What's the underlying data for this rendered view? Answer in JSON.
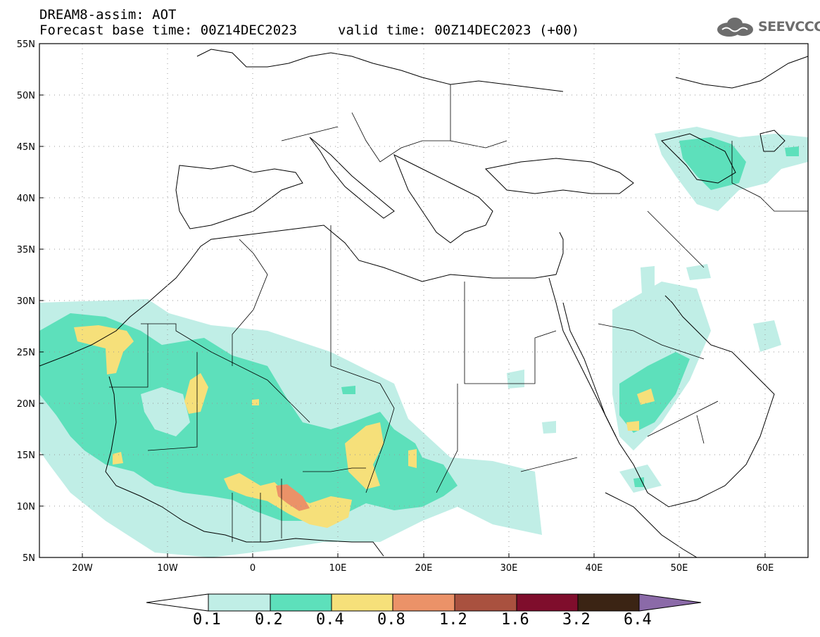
{
  "header": {
    "title": "DREAM8-assim: AOT",
    "base_time": "Forecast base time: 00Z14DEC2023",
    "valid_time": "valid time: 00Z14DEC2023 (+00)",
    "logo_text": "SEEVCCC"
  },
  "map": {
    "lon_range": [
      -25,
      65
    ],
    "lat_range": [
      5,
      55
    ],
    "lat_labels": [
      "55N",
      "50N",
      "45N",
      "40N",
      "35N",
      "30N",
      "25N",
      "20N",
      "15N",
      "10N",
      "5N"
    ],
    "lon_labels": [
      "20W",
      "10W",
      "0",
      "10E",
      "20E",
      "30E",
      "40E",
      "50E",
      "60E"
    ]
  },
  "colorbar": {
    "levels": [
      "0.1",
      "0.2",
      "0.4",
      "0.8",
      "1.2",
      "1.6",
      "3.2",
      "6.4"
    ],
    "colors": [
      "#ffffff",
      "#c0eee6",
      "#5de0bb",
      "#f6e07a",
      "#eb9268",
      "#a9513f",
      "#7f0d2c",
      "#3b2414",
      "#8b6aa8"
    ]
  },
  "palette": {
    "light": "#c0eee6",
    "green": "#5de0bb",
    "yellow": "#f6e07a",
    "orange": "#eb9268"
  }
}
